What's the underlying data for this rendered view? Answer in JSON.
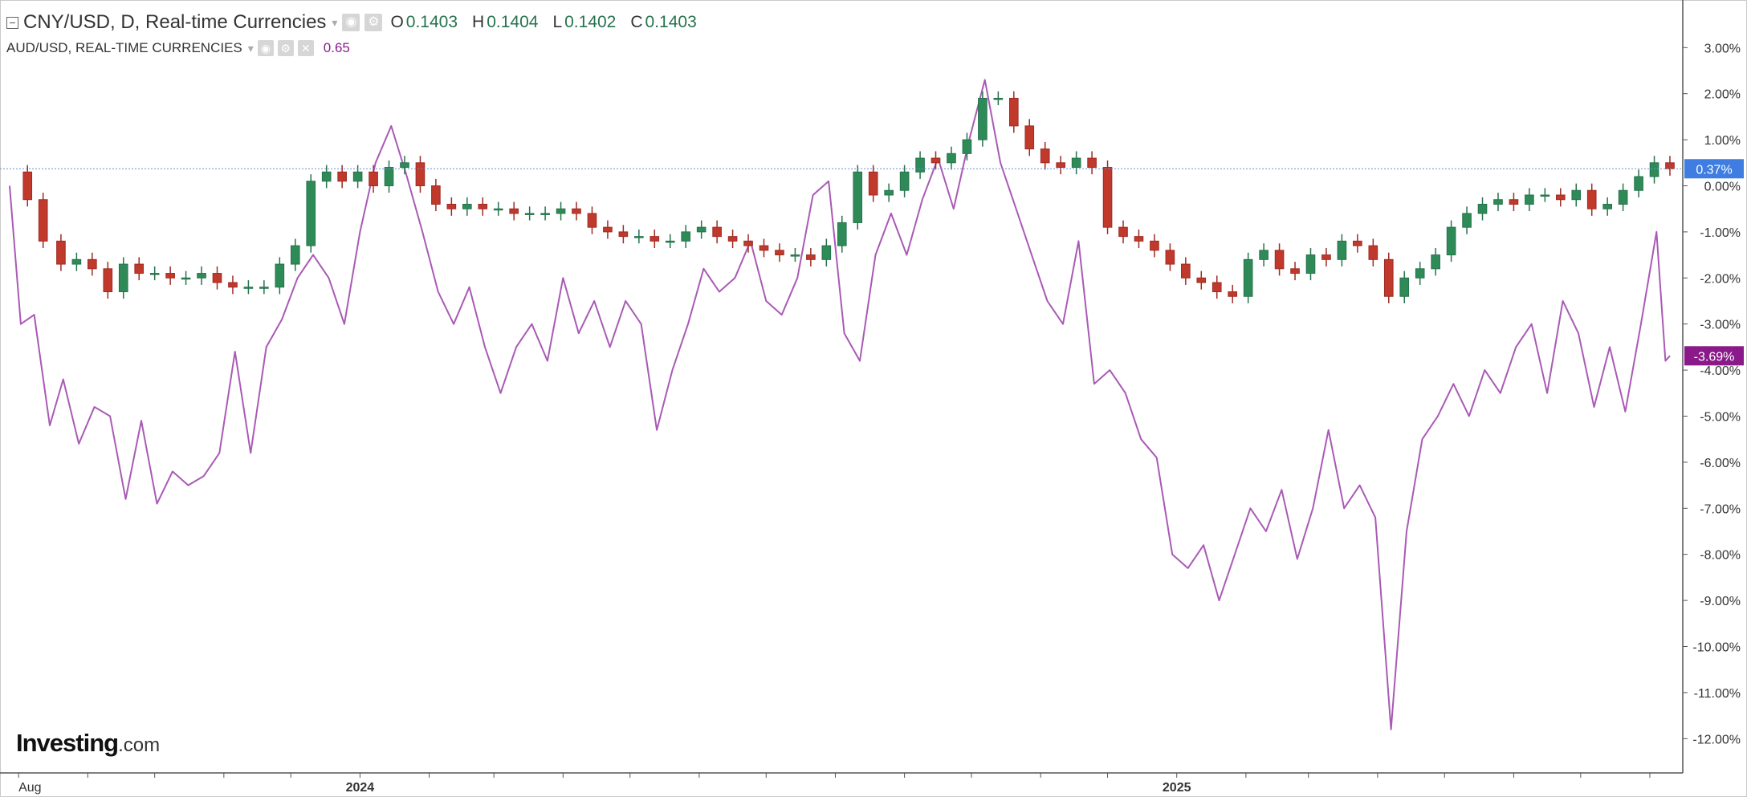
{
  "legend": {
    "main_title": "CNY/USD, D, Real-time Currencies",
    "ohlc": [
      {
        "label": "O",
        "value": "0.1403"
      },
      {
        "label": "H",
        "value": "0.1404"
      },
      {
        "label": "L",
        "value": "0.1402"
      },
      {
        "label": "C",
        "value": "0.1403"
      }
    ],
    "compare_title": "AUD/USD, REAL-TIME CURRENCIES",
    "compare_value": "0.65"
  },
  "branding": {
    "logo_main": "Investing",
    "logo_suffix": ".com"
  },
  "colors": {
    "up": "#26734d",
    "up_fill": "#2e8b57",
    "down": "#9e2b25",
    "down_fill": "#c0392b",
    "compare_line": "#a95ab5",
    "last_main_badge": "#3f7de0",
    "last_compare_badge": "#8a1a8a",
    "price_line": "#6b8fd6"
  },
  "icons": [
    "collapse-icon",
    "dropdown-caret-icon",
    "settings-icon",
    "eye-icon",
    "remove-icon"
  ],
  "chart_data": {
    "type": "line",
    "y_unit": "percent",
    "ylim": [
      -12.7,
      4.0
    ],
    "y_ticks": [
      "3.00%",
      "2.00%",
      "1.00%",
      "0.00%",
      "-1.00%",
      "-2.00%",
      "-3.00%",
      "-4.00%",
      "-5.00%",
      "-6.00%",
      "-7.00%",
      "-8.00%",
      "-9.00%",
      "-10.00%",
      "-11.00%",
      "-12.00%"
    ],
    "y_tick_values": [
      3,
      2,
      1,
      0,
      -1,
      -2,
      -3,
      -4,
      -5,
      -6,
      -7,
      -8,
      -9,
      -10,
      -11,
      -12
    ],
    "x_labels": [
      {
        "label": "Aug",
        "date": "2023-08-01"
      },
      {
        "label": "2024",
        "date": "2024-01-01"
      },
      {
        "label": "2025",
        "date": "2025-01-01"
      }
    ],
    "x_tick_dates": [
      "2023-08-01",
      "2023-09-01",
      "2023-10-01",
      "2023-11-01",
      "2023-12-01",
      "2024-01-01",
      "2024-02-01",
      "2024-03-01",
      "2024-04-01",
      "2024-05-01",
      "2024-06-01",
      "2024-07-01",
      "2024-08-01",
      "2024-09-01",
      "2024-10-01",
      "2024-11-01",
      "2024-12-01",
      "2025-01-01",
      "2025-02-01",
      "2025-03-01",
      "2025-04-01",
      "2025-05-01",
      "2025-06-01",
      "2025-07-01",
      "2025-08-01"
    ],
    "x_range": [
      "2023-07-28",
      "2025-08-10"
    ],
    "series": [
      {
        "name": "CNY/USD",
        "style": "candlestick",
        "last_label": "0.37%",
        "points": [
          [
            "2023-07-28",
            0.3
          ],
          [
            "2023-08-05",
            -0.3
          ],
          [
            "2023-08-12",
            -1.2
          ],
          [
            "2023-08-20",
            -1.7
          ],
          [
            "2023-08-27",
            -1.6
          ],
          [
            "2023-09-03",
            -1.8
          ],
          [
            "2023-09-10",
            -2.3
          ],
          [
            "2023-09-17",
            -1.7
          ],
          [
            "2023-09-24",
            -1.9
          ],
          [
            "2023-10-01",
            -1.9
          ],
          [
            "2023-10-08",
            -2.0
          ],
          [
            "2023-10-15",
            -2.0
          ],
          [
            "2023-10-22",
            -1.9
          ],
          [
            "2023-10-29",
            -2.1
          ],
          [
            "2023-11-05",
            -2.2
          ],
          [
            "2023-11-12",
            -2.2
          ],
          [
            "2023-11-19",
            -2.2
          ],
          [
            "2023-11-26",
            -1.7
          ],
          [
            "2023-12-03",
            -1.3
          ],
          [
            "2023-12-10",
            0.1
          ],
          [
            "2023-12-17",
            0.3
          ],
          [
            "2023-12-24",
            0.1
          ],
          [
            "2023-12-31",
            0.3
          ],
          [
            "2024-01-07",
            0.0
          ],
          [
            "2024-01-14",
            0.4
          ],
          [
            "2024-01-21",
            0.5
          ],
          [
            "2024-01-28",
            0.0
          ],
          [
            "2024-02-04",
            -0.4
          ],
          [
            "2024-02-11",
            -0.5
          ],
          [
            "2024-02-18",
            -0.4
          ],
          [
            "2024-02-25",
            -0.5
          ],
          [
            "2024-03-03",
            -0.5
          ],
          [
            "2024-03-10",
            -0.6
          ],
          [
            "2024-03-17",
            -0.6
          ],
          [
            "2024-03-24",
            -0.6
          ],
          [
            "2024-03-31",
            -0.5
          ],
          [
            "2024-04-07",
            -0.6
          ],
          [
            "2024-04-14",
            -0.9
          ],
          [
            "2024-04-21",
            -1.0
          ],
          [
            "2024-04-28",
            -1.1
          ],
          [
            "2024-05-05",
            -1.1
          ],
          [
            "2024-05-12",
            -1.2
          ],
          [
            "2024-05-19",
            -1.2
          ],
          [
            "2024-05-26",
            -1.0
          ],
          [
            "2024-06-02",
            -0.9
          ],
          [
            "2024-06-09",
            -1.1
          ],
          [
            "2024-06-16",
            -1.2
          ],
          [
            "2024-06-23",
            -1.3
          ],
          [
            "2024-06-30",
            -1.4
          ],
          [
            "2024-07-07",
            -1.5
          ],
          [
            "2024-07-14",
            -1.5
          ],
          [
            "2024-07-21",
            -1.6
          ],
          [
            "2024-07-28",
            -1.3
          ],
          [
            "2024-08-04",
            -0.8
          ],
          [
            "2024-08-11",
            0.3
          ],
          [
            "2024-08-18",
            -0.2
          ],
          [
            "2024-08-25",
            -0.1
          ],
          [
            "2024-09-01",
            0.3
          ],
          [
            "2024-09-08",
            0.6
          ],
          [
            "2024-09-15",
            0.5
          ],
          [
            "2024-09-22",
            0.7
          ],
          [
            "2024-09-29",
            1.0
          ],
          [
            "2024-10-06",
            1.9
          ],
          [
            "2024-10-13",
            1.9
          ],
          [
            "2024-10-20",
            1.3
          ],
          [
            "2024-10-27",
            0.8
          ],
          [
            "2024-11-03",
            0.5
          ],
          [
            "2024-11-10",
            0.4
          ],
          [
            "2024-11-17",
            0.6
          ],
          [
            "2024-11-24",
            0.4
          ],
          [
            "2024-12-01",
            -0.9
          ],
          [
            "2024-12-08",
            -1.1
          ],
          [
            "2024-12-15",
            -1.2
          ],
          [
            "2024-12-22",
            -1.4
          ],
          [
            "2024-12-29",
            -1.7
          ],
          [
            "2025-01-05",
            -2.0
          ],
          [
            "2025-01-12",
            -2.1
          ],
          [
            "2025-01-19",
            -2.3
          ],
          [
            "2025-01-26",
            -2.4
          ],
          [
            "2025-02-02",
            -1.6
          ],
          [
            "2025-02-09",
            -1.4
          ],
          [
            "2025-02-16",
            -1.8
          ],
          [
            "2025-02-23",
            -1.9
          ],
          [
            "2025-03-02",
            -1.5
          ],
          [
            "2025-03-09",
            -1.6
          ],
          [
            "2025-03-16",
            -1.2
          ],
          [
            "2025-03-23",
            -1.3
          ],
          [
            "2025-03-30",
            -1.6
          ],
          [
            "2025-04-06",
            -2.4
          ],
          [
            "2025-04-13",
            -2.0
          ],
          [
            "2025-04-20",
            -1.8
          ],
          [
            "2025-04-27",
            -1.5
          ],
          [
            "2025-05-04",
            -0.9
          ],
          [
            "2025-05-11",
            -0.6
          ],
          [
            "2025-05-18",
            -0.4
          ],
          [
            "2025-05-25",
            -0.3
          ],
          [
            "2025-06-01",
            -0.4
          ],
          [
            "2025-06-08",
            -0.2
          ],
          [
            "2025-06-15",
            -0.2
          ],
          [
            "2025-06-22",
            -0.3
          ],
          [
            "2025-06-29",
            -0.1
          ],
          [
            "2025-07-06",
            -0.5
          ],
          [
            "2025-07-13",
            -0.4
          ],
          [
            "2025-07-20",
            -0.1
          ],
          [
            "2025-07-27",
            0.2
          ],
          [
            "2025-08-03",
            0.5
          ],
          [
            "2025-08-10",
            0.37
          ]
        ]
      },
      {
        "name": "AUD/USD",
        "style": "line",
        "last_label": "-3.69%",
        "points": [
          [
            "2023-07-28",
            0.0
          ],
          [
            "2023-08-02",
            -3.0
          ],
          [
            "2023-08-08",
            -2.8
          ],
          [
            "2023-08-15",
            -5.2
          ],
          [
            "2023-08-21",
            -4.2
          ],
          [
            "2023-08-28",
            -5.6
          ],
          [
            "2023-09-04",
            -4.8
          ],
          [
            "2023-09-11",
            -5.0
          ],
          [
            "2023-09-18",
            -6.8
          ],
          [
            "2023-09-25",
            -5.1
          ],
          [
            "2023-10-02",
            -6.9
          ],
          [
            "2023-10-09",
            -6.2
          ],
          [
            "2023-10-16",
            -6.5
          ],
          [
            "2023-10-23",
            -6.3
          ],
          [
            "2023-10-30",
            -5.8
          ],
          [
            "2023-11-06",
            -3.6
          ],
          [
            "2023-11-13",
            -5.8
          ],
          [
            "2023-11-20",
            -3.5
          ],
          [
            "2023-11-27",
            -2.9
          ],
          [
            "2023-12-04",
            -2.0
          ],
          [
            "2023-12-11",
            -1.5
          ],
          [
            "2023-12-18",
            -2.0
          ],
          [
            "2023-12-25",
            -3.0
          ],
          [
            "2024-01-01",
            -1.0
          ],
          [
            "2024-01-08",
            0.5
          ],
          [
            "2024-01-15",
            1.3
          ],
          [
            "2024-01-22",
            0.2
          ],
          [
            "2024-01-29",
            -1.0
          ],
          [
            "2024-02-05",
            -2.3
          ],
          [
            "2024-02-12",
            -3.0
          ],
          [
            "2024-02-19",
            -2.2
          ],
          [
            "2024-02-26",
            -3.5
          ],
          [
            "2024-03-04",
            -4.5
          ],
          [
            "2024-03-11",
            -3.5
          ],
          [
            "2024-03-18",
            -3.0
          ],
          [
            "2024-03-25",
            -3.8
          ],
          [
            "2024-04-01",
            -2.0
          ],
          [
            "2024-04-08",
            -3.2
          ],
          [
            "2024-04-15",
            -2.5
          ],
          [
            "2024-04-22",
            -3.5
          ],
          [
            "2024-04-29",
            -2.5
          ],
          [
            "2024-05-06",
            -3.0
          ],
          [
            "2024-05-13",
            -5.3
          ],
          [
            "2024-05-20",
            -4.0
          ],
          [
            "2024-05-27",
            -3.0
          ],
          [
            "2024-06-03",
            -1.8
          ],
          [
            "2024-06-10",
            -2.3
          ],
          [
            "2024-06-17",
            -2.0
          ],
          [
            "2024-06-24",
            -1.2
          ],
          [
            "2024-07-01",
            -2.5
          ],
          [
            "2024-07-08",
            -2.8
          ],
          [
            "2024-07-15",
            -2.0
          ],
          [
            "2024-07-22",
            -0.2
          ],
          [
            "2024-07-29",
            0.1
          ],
          [
            "2024-08-05",
            -3.2
          ],
          [
            "2024-08-12",
            -3.8
          ],
          [
            "2024-08-19",
            -1.5
          ],
          [
            "2024-08-26",
            -0.6
          ],
          [
            "2024-09-02",
            -1.5
          ],
          [
            "2024-09-09",
            -0.3
          ],
          [
            "2024-09-16",
            0.6
          ],
          [
            "2024-09-23",
            -0.5
          ],
          [
            "2024-09-30",
            1.0
          ],
          [
            "2024-10-07",
            2.3
          ],
          [
            "2024-10-14",
            0.5
          ],
          [
            "2024-10-21",
            -0.5
          ],
          [
            "2024-10-28",
            -1.5
          ],
          [
            "2024-11-04",
            -2.5
          ],
          [
            "2024-11-11",
            -3.0
          ],
          [
            "2024-11-18",
            -1.2
          ],
          [
            "2024-11-25",
            -4.3
          ],
          [
            "2024-12-02",
            -4.0
          ],
          [
            "2024-12-09",
            -4.5
          ],
          [
            "2024-12-16",
            -5.5
          ],
          [
            "2024-12-23",
            -5.9
          ],
          [
            "2024-12-30",
            -8.0
          ],
          [
            "2025-01-06",
            -8.3
          ],
          [
            "2025-01-13",
            -7.8
          ],
          [
            "2025-01-20",
            -9.0
          ],
          [
            "2025-01-27",
            -8.0
          ],
          [
            "2025-02-03",
            -7.0
          ],
          [
            "2025-02-10",
            -7.5
          ],
          [
            "2025-02-17",
            -6.6
          ],
          [
            "2025-02-24",
            -8.1
          ],
          [
            "2025-03-03",
            -7.0
          ],
          [
            "2025-03-10",
            -5.3
          ],
          [
            "2025-03-17",
            -7.0
          ],
          [
            "2025-03-24",
            -6.5
          ],
          [
            "2025-03-31",
            -7.2
          ],
          [
            "2025-04-07",
            -11.8
          ],
          [
            "2025-04-14",
            -7.5
          ],
          [
            "2025-04-21",
            -5.5
          ],
          [
            "2025-04-28",
            -5.0
          ],
          [
            "2025-05-05",
            -4.3
          ],
          [
            "2025-05-12",
            -5.0
          ],
          [
            "2025-05-19",
            -4.0
          ],
          [
            "2025-05-26",
            -4.5
          ],
          [
            "2025-06-02",
            -3.5
          ],
          [
            "2025-06-09",
            -3.0
          ],
          [
            "2025-06-16",
            -4.5
          ],
          [
            "2025-06-23",
            -2.5
          ],
          [
            "2025-06-30",
            -3.2
          ],
          [
            "2025-07-07",
            -4.8
          ],
          [
            "2025-07-14",
            -3.5
          ],
          [
            "2025-07-21",
            -4.9
          ],
          [
            "2025-07-28",
            -3.0
          ],
          [
            "2025-08-04",
            -1.0
          ],
          [
            "2025-08-08",
            -3.8
          ],
          [
            "2025-08-10",
            -3.69
          ]
        ]
      }
    ],
    "grid": false,
    "legend_position": "top-left"
  }
}
